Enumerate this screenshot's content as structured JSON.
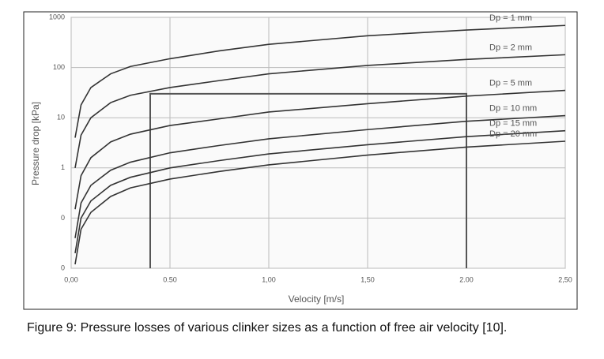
{
  "chart_data": {
    "type": "line",
    "caption": "Figure 9: Pressure losses of various clinker sizes as a function of free air velocity [10].",
    "x_label": "Velocity [m/s]",
    "y_label": "Pressure drop [kPa]",
    "log_y": true,
    "grid": true,
    "xlim": [
      0,
      2.5
    ],
    "ylim": [
      0.01,
      1000
    ],
    "xticks": [
      {
        "value": 0,
        "label": "0,00"
      },
      {
        "value": 0.5,
        "label": "0.50"
      },
      {
        "value": 1,
        "label": "1,00"
      },
      {
        "value": 1.5,
        "label": "1,50"
      },
      {
        "value": 2,
        "label": "2.00"
      },
      {
        "value": 2.5,
        "label": "2,50"
      }
    ],
    "yticks": [
      1000,
      100,
      10,
      1,
      {
        "value": 0.1,
        "label": "0"
      },
      {
        "value": 0.01,
        "label": "0"
      }
    ],
    "x": [
      0.02,
      0.05,
      0.1,
      0.2,
      0.3,
      0.5,
      0.75,
      1,
      1.5,
      2,
      2.5
    ],
    "series": [
      {
        "name": "Dp = 1 mm",
        "color": "#333333",
        "values": [
          4,
          18,
          40,
          75,
          105,
          150,
          215,
          290,
          430,
          560,
          690
        ]
      },
      {
        "name": "Dp = 2 mm",
        "color": "#333333",
        "values": [
          1,
          4.5,
          10,
          20,
          28,
          40,
          55,
          75,
          110,
          145,
          180
        ]
      },
      {
        "name": "Dp = 5 mm",
        "color": "#333333",
        "values": [
          0.15,
          0.7,
          1.6,
          3.3,
          4.7,
          7,
          9.5,
          13,
          19,
          27,
          35
        ]
      },
      {
        "name": "Dp = 10 mm",
        "color": "#333333",
        "values": [
          0.04,
          0.2,
          0.45,
          0.9,
          1.3,
          2,
          2.8,
          3.8,
          5.8,
          8.5,
          11
        ]
      },
      {
        "name": "Dp = 15 mm",
        "color": "#333333",
        "values": [
          0.02,
          0.1,
          0.22,
          0.45,
          0.65,
          1,
          1.4,
          1.9,
          2.9,
          4.2,
          5.5
        ]
      },
      {
        "name": "Dp = 20 mm",
        "color": "#333333",
        "values": [
          0.012,
          0.06,
          0.13,
          0.27,
          0.4,
          0.6,
          0.85,
          1.15,
          1.8,
          2.6,
          3.4
        ]
      }
    ],
    "annotation_lines": {
      "x": [
        0.4,
        0.4,
        2,
        2
      ],
      "y": [
        0.01,
        30,
        30,
        0.01
      ]
    }
  }
}
